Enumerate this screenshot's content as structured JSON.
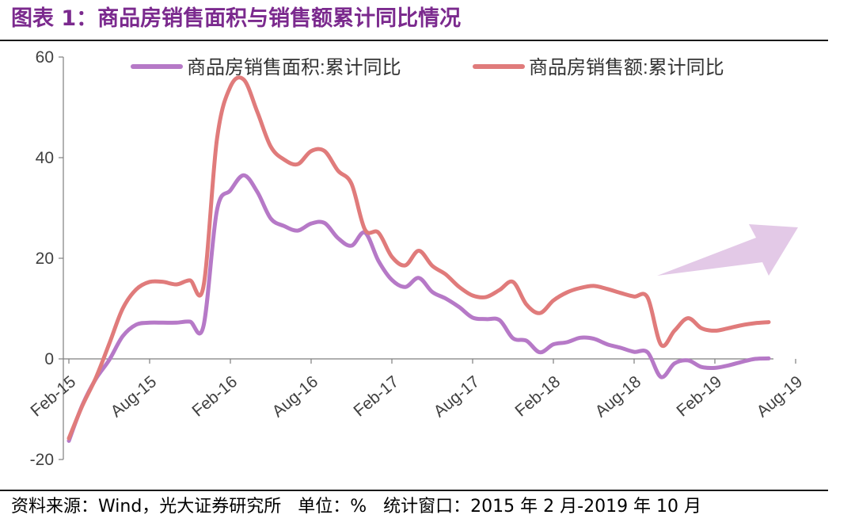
{
  "figure": {
    "title": "图表 1：商品房销售面积与销售额累计同比情况"
  },
  "footer": {
    "source": "资料来源：Wind，光大证券研究所",
    "unit": "单位：%",
    "window": "统计窗口：2015 年 2 月-2019 年 10 月"
  },
  "colors": {
    "title": "#7b2a8e",
    "area_series": "#b679c7",
    "sales_series": "#e07b7b",
    "arrow": "#e2c6e6"
  },
  "chart_data": {
    "type": "line",
    "title": "",
    "xlabel": "",
    "ylabel": "",
    "ylim": [
      -20,
      60
    ],
    "yticks": [
      -20,
      0,
      20,
      40,
      60
    ],
    "grid": false,
    "legend_position": "top",
    "x_tick_labels": [
      "Feb-15",
      "Aug-15",
      "Feb-16",
      "Aug-16",
      "Feb-17",
      "Aug-17",
      "Feb-18",
      "Aug-18",
      "Feb-19",
      "Aug-19"
    ],
    "x": [
      "2015-02",
      "2015-03",
      "2015-04",
      "2015-05",
      "2015-06",
      "2015-07",
      "2015-08",
      "2015-09",
      "2015-10",
      "2015-11",
      "2015-12",
      "2016-02",
      "2016-03",
      "2016-04",
      "2016-05",
      "2016-06",
      "2016-07",
      "2016-08",
      "2016-09",
      "2016-10",
      "2016-11",
      "2016-12",
      "2017-02",
      "2017-03",
      "2017-04",
      "2017-05",
      "2017-06",
      "2017-07",
      "2017-08",
      "2017-09",
      "2017-10",
      "2017-11",
      "2017-12",
      "2018-02",
      "2018-03",
      "2018-04",
      "2018-05",
      "2018-06",
      "2018-07",
      "2018-08",
      "2018-09",
      "2018-10",
      "2018-11",
      "2018-12",
      "2019-02",
      "2019-03",
      "2019-04",
      "2019-05",
      "2019-06",
      "2019-07",
      "2019-08",
      "2019-09",
      "2019-10"
    ],
    "series": [
      {
        "name": "商品房销售面积:累计同比",
        "values": [
          -16.3,
          -9.2,
          -4.0,
          -0.2,
          4.5,
          6.8,
          7.2,
          7.2,
          7.2,
          7.4,
          6.5,
          29.5,
          33.5,
          36.5,
          33.2,
          27.9,
          26.4,
          25.5,
          26.9,
          27.0,
          24.0,
          22.5,
          25.1,
          19.5,
          15.7,
          14.3,
          16.1,
          13.3,
          12.0,
          10.3,
          8.2,
          7.9,
          7.7,
          4.1,
          3.6,
          1.3,
          2.9,
          3.3,
          4.2,
          4.0,
          2.9,
          2.2,
          1.4,
          1.3,
          -3.6,
          -0.9,
          -0.3,
          -1.6,
          -1.8,
          -1.3,
          -0.6,
          0.0,
          0.1
        ]
      },
      {
        "name": "商品房销售额:累计同比",
        "values": [
          -15.8,
          -9.3,
          -3.8,
          3.0,
          10.0,
          13.8,
          15.3,
          15.3,
          14.8,
          15.6,
          14.4,
          43.6,
          54.1,
          55.5,
          49.1,
          42.2,
          39.6,
          38.7,
          41.3,
          41.3,
          37.4,
          34.8,
          25.7,
          25.1,
          20.3,
          18.6,
          21.5,
          18.5,
          16.8,
          14.3,
          12.6,
          12.3,
          13.7,
          15.3,
          10.8,
          9.1,
          11.6,
          13.2,
          14.1,
          14.5,
          13.9,
          13.1,
          12.4,
          12.2,
          2.8,
          5.6,
          8.1,
          6.1,
          5.6,
          6.1,
          6.7,
          7.1,
          7.3
        ]
      }
    ]
  }
}
